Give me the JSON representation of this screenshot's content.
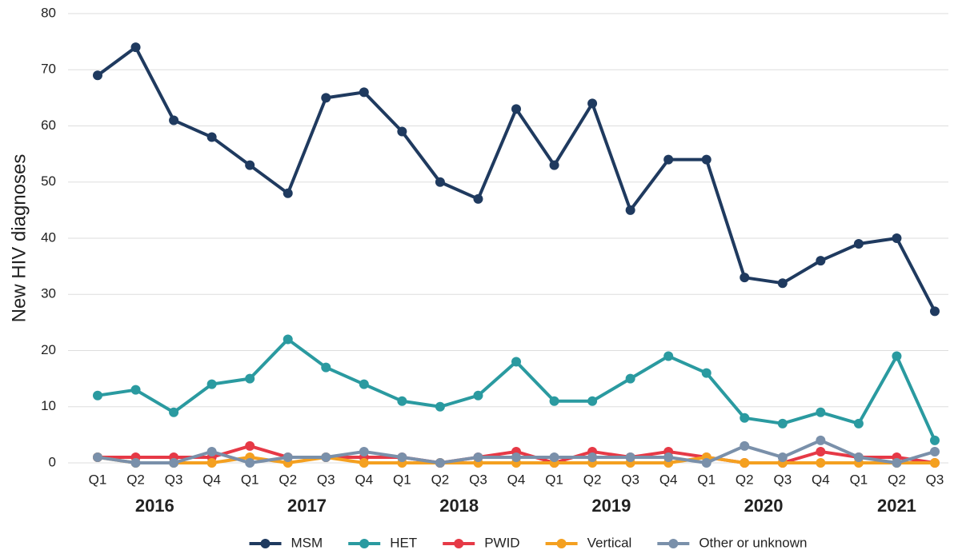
{
  "chart_data": {
    "type": "line",
    "y_label": "New HIV diagnoses",
    "categories": [
      "Q1",
      "Q2",
      "Q3",
      "Q4",
      "Q1",
      "Q2",
      "Q3",
      "Q4",
      "Q1",
      "Q2",
      "Q3",
      "Q4",
      "Q1",
      "Q2",
      "Q3",
      "Q4",
      "Q1",
      "Q2",
      "Q3",
      "Q4",
      "Q1",
      "Q2",
      "Q3"
    ],
    "year_labels": [
      "2016",
      "2017",
      "2018",
      "2019",
      "2020",
      "2021"
    ],
    "ylim": [
      0,
      80
    ],
    "yticks": [
      0,
      10,
      20,
      30,
      40,
      50,
      60,
      70,
      80
    ],
    "grid": true,
    "legend": "bottom",
    "series": [
      {
        "name": "MSM",
        "color": "#1f3a5f",
        "values": [
          69,
          74,
          61,
          58,
          53,
          48,
          65,
          66,
          59,
          50,
          47,
          63,
          53,
          64,
          45,
          54,
          54,
          33,
          32,
          36,
          39,
          40,
          27
        ]
      },
      {
        "name": "HET",
        "color": "#2a9aa0",
        "values": [
          12,
          13,
          9,
          14,
          15,
          22,
          17,
          14,
          11,
          10,
          12,
          18,
          11,
          11,
          15,
          19,
          16,
          8,
          7,
          9,
          7,
          19,
          4
        ]
      },
      {
        "name": "PWID",
        "color": "#e63946",
        "values": [
          1,
          1,
          1,
          1,
          3,
          1,
          1,
          1,
          1,
          0,
          1,
          2,
          0,
          2,
          1,
          2,
          1,
          0,
          0,
          2,
          1,
          1,
          0
        ]
      },
      {
        "name": "Vertical",
        "color": "#f4a020",
        "values": [
          1,
          0,
          0,
          0,
          1,
          0,
          1,
          0,
          0,
          0,
          0,
          0,
          0,
          0,
          0,
          0,
          1,
          0,
          0,
          0,
          0,
          0,
          0
        ]
      },
      {
        "name": "Other or unknown",
        "color": "#7a90aa",
        "values": [
          1,
          0,
          0,
          2,
          0,
          1,
          1,
          2,
          1,
          0,
          1,
          1,
          1,
          1,
          1,
          1,
          0,
          3,
          1,
          4,
          1,
          0,
          2
        ]
      }
    ]
  }
}
